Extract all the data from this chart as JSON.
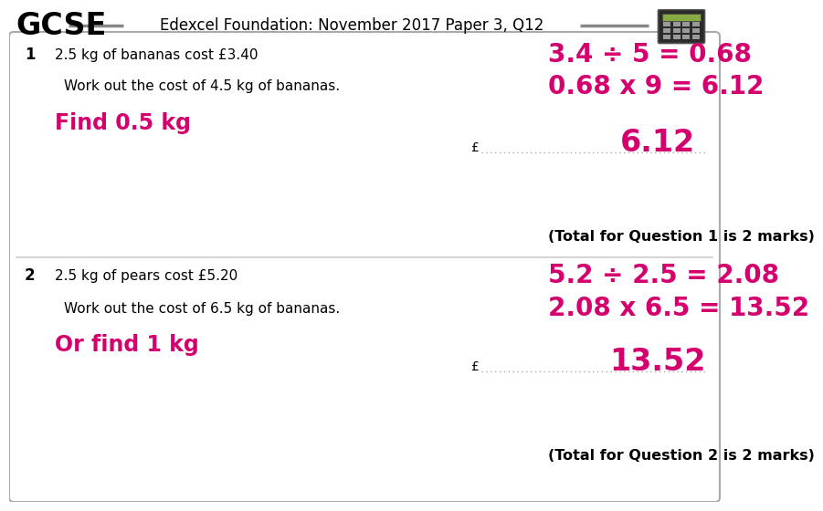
{
  "title": "Edexcel Foundation: November 2017 Paper 3, Q12",
  "bg_color": "#ffffff",
  "pink": "#d4006e",
  "black": "#000000",
  "gray": "#888888",
  "light_gray": "#bbbbbb",
  "q1_number": "1",
  "q1_given": "2.5 kg of bananas cost £3.40",
  "q1_workout": "Work out the cost of 4.5 kg of bananas.",
  "q1_hint": "Find 0.5 kg",
  "q1_step1": "3.4 ÷ 5 = 0.68",
  "q1_step2": "0.68 x 9 = 6.12",
  "q1_answer": "6.12",
  "q1_total": "(Total for Question 1 is 2 marks)",
  "q2_number": "2",
  "q2_given": "2.5 kg of pears cost £5.20",
  "q2_workout": "Work out the cost of 6.5 kg of bananas.",
  "q2_hint": "Or find 1 kg",
  "q2_step1": "5.2 ÷ 2.5 = 2.08",
  "q2_step2": "2.08 x 6.5 = 13.52",
  "q2_answer": "13.52",
  "q2_total": "(Total for Question 2 is 2 marks)"
}
